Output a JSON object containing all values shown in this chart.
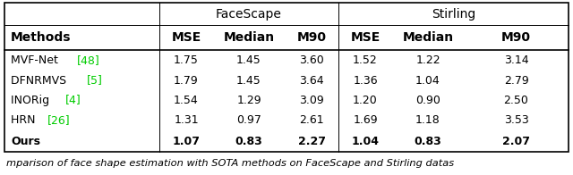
{
  "caption": "mparison of face shape estimation with SOTA methods on FaceScape and Stirling datas",
  "header_row2": [
    "Methods",
    "MSE",
    "Median",
    "M90",
    "MSE",
    "Median",
    "M90"
  ],
  "rows": [
    [
      "MVF-Net [48]",
      "1.75",
      "1.45",
      "3.60",
      "1.52",
      "1.22",
      "3.14"
    ],
    [
      "DFNRMVS [5]",
      "1.79",
      "1.45",
      "3.64",
      "1.36",
      "1.04",
      "2.79"
    ],
    [
      "INORig [4]",
      "1.54",
      "1.29",
      "3.09",
      "1.20",
      "0.90",
      "2.50"
    ],
    [
      "HRN [26]",
      "1.31",
      "0.97",
      "2.61",
      "1.69",
      "1.18",
      "3.53"
    ],
    [
      "Ours",
      "1.07",
      "0.83",
      "2.27",
      "1.04",
      "0.83",
      "2.07"
    ]
  ],
  "bold_row_idx": 4,
  "green_refs": {
    "MVF-Net [48]": {
      "main": "MVF-Net ",
      "ref": "[48]"
    },
    "DFNRMVS [5]": {
      "main": "DFNRMVS ",
      "ref": "[5]"
    },
    "INORig [4]": {
      "main": "INORig ",
      "ref": "[4]"
    },
    "HRN [26]": {
      "main": "HRN ",
      "ref": "[26]"
    }
  },
  "background_color": "#ffffff",
  "text_color": "#000000",
  "green_color": "#00cc00",
  "font_size": 9.0,
  "header_font_size": 10.0,
  "caption_font_size": 8.2
}
